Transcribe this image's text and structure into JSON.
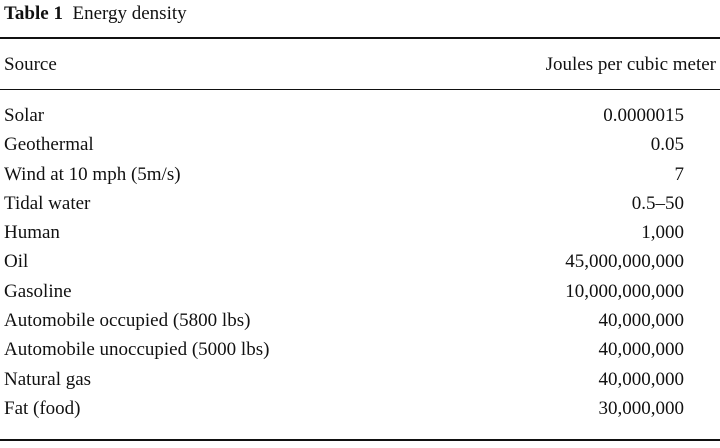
{
  "caption": {
    "label": "Table 1",
    "title": "Energy density"
  },
  "table": {
    "headers": {
      "source": "Source",
      "value": "Joules per cubic meter"
    },
    "rows": [
      {
        "source": "Solar",
        "value": "0.0000015"
      },
      {
        "source": "Geothermal",
        "value": "0.05"
      },
      {
        "source": "Wind at 10 mph (5m/s)",
        "value": "7"
      },
      {
        "source": "Tidal water",
        "value": "0.5–50"
      },
      {
        "source": "Human",
        "value": "1,000"
      },
      {
        "source": "Oil",
        "value": "45,000,000,000"
      },
      {
        "source": "Gasoline",
        "value": "10,000,000,000"
      },
      {
        "source": "Automobile occupied (5800 lbs)",
        "value": "40,000,000"
      },
      {
        "source": "Automobile unoccupied (5000 lbs)",
        "value": "40,000,000"
      },
      {
        "source": "Natural gas",
        "value": "40,000,000"
      },
      {
        "source": "Fat (food)",
        "value": "30,000,000"
      }
    ]
  }
}
